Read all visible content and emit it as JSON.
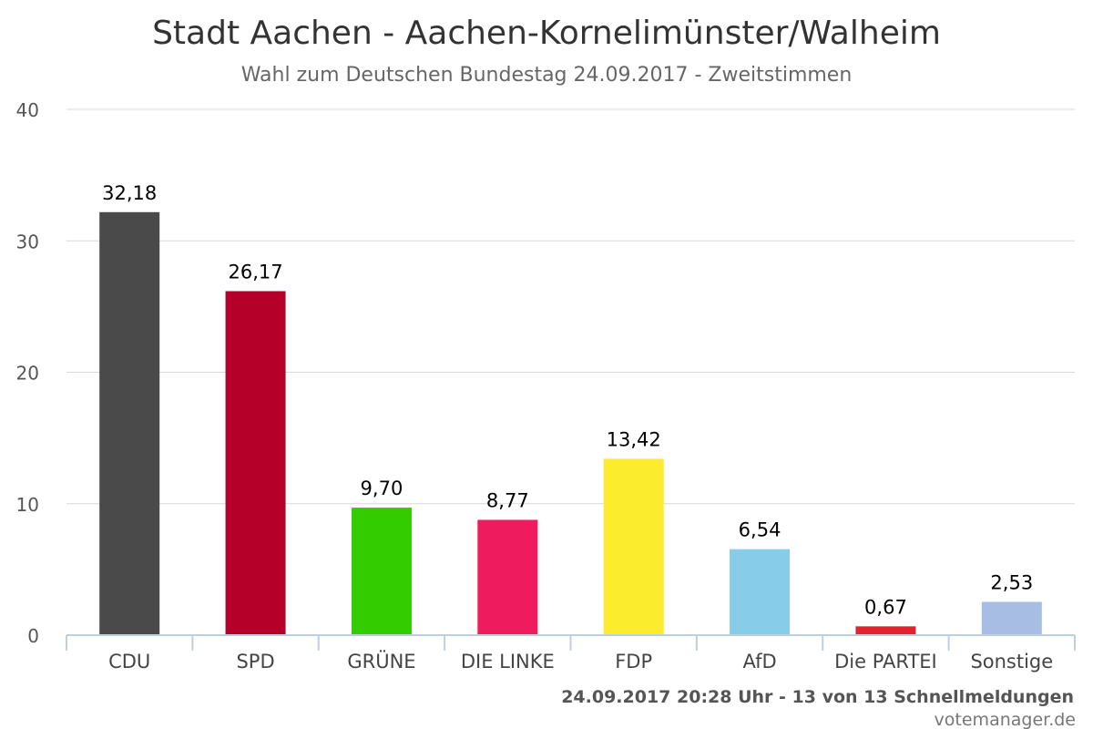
{
  "chart_data": {
    "type": "bar",
    "title": "Stadt Aachen - Aachen-Kornelimünster/Walheim",
    "subtitle": "Wahl zum Deutschen Bundestag 24.09.2017 - Zweitstimmen",
    "categories": [
      "CDU",
      "SPD",
      "GRÜNE",
      "DIE LINKE",
      "FDP",
      "AfD",
      "Die PARTEI",
      "Sonstige"
    ],
    "values": [
      32.18,
      26.17,
      9.7,
      8.77,
      13.42,
      6.54,
      0.67,
      2.53
    ],
    "value_labels": [
      "32,18",
      "26,17",
      "9,70",
      "8,77",
      "13,42",
      "6,54",
      "0,67",
      "2,53"
    ],
    "colors": [
      "#4a4a4a",
      "#b5002a",
      "#33cc00",
      "#ee1c5e",
      "#fcec2e",
      "#87cdea",
      "#e3212f",
      "#a8bde3"
    ],
    "ylim": [
      0,
      40
    ],
    "yticks": [
      0,
      10,
      20,
      30,
      40
    ],
    "ytick_labels": [
      "0",
      "10",
      "20",
      "30",
      "40"
    ],
    "xlabel": "",
    "ylabel": "",
    "grid": true,
    "legend": "none"
  },
  "footer": {
    "timestamp": "24.09.2017 20:28 Uhr - 13 von 13 Schnellmeldungen",
    "credit": "votemanager.de"
  }
}
